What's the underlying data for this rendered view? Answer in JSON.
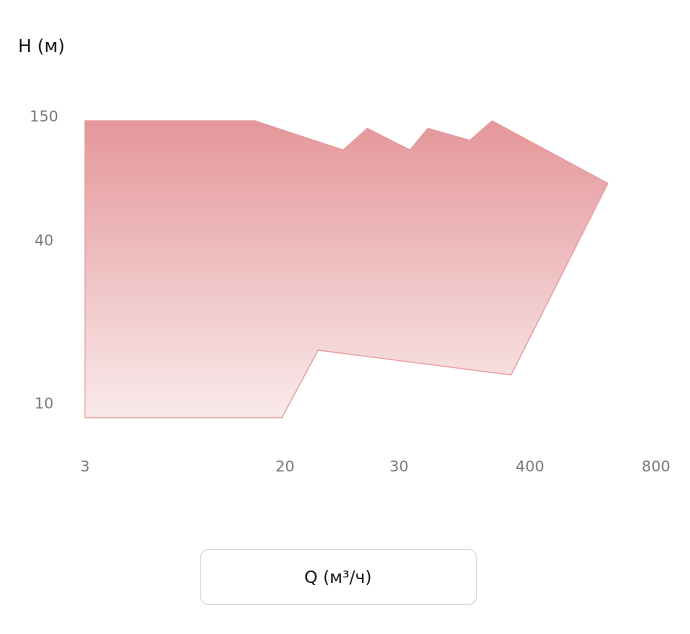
{
  "chart_data": {
    "type": "area",
    "ylabel": "Н (м)",
    "xlabel": "Q (м³/ч)",
    "x": [
      3,
      15,
      24.6,
      26.8,
      37.3,
      53,
      122,
      189,
      614,
      275,
      22.5,
      19.4,
      3
    ],
    "values": [
      144,
      144,
      105.5,
      133,
      105.5,
      133,
      117,
      144,
      74,
      12.8,
      15.8,
      8.9,
      8.9
    ],
    "color": "#e4979a",
    "log_scale": true,
    "xlim": [
      3,
      800
    ],
    "ylim": [
      10,
      150
    ],
    "xticks": [
      3,
      20,
      30,
      400,
      800
    ],
    "yticks": [
      150,
      40,
      10
    ]
  }
}
